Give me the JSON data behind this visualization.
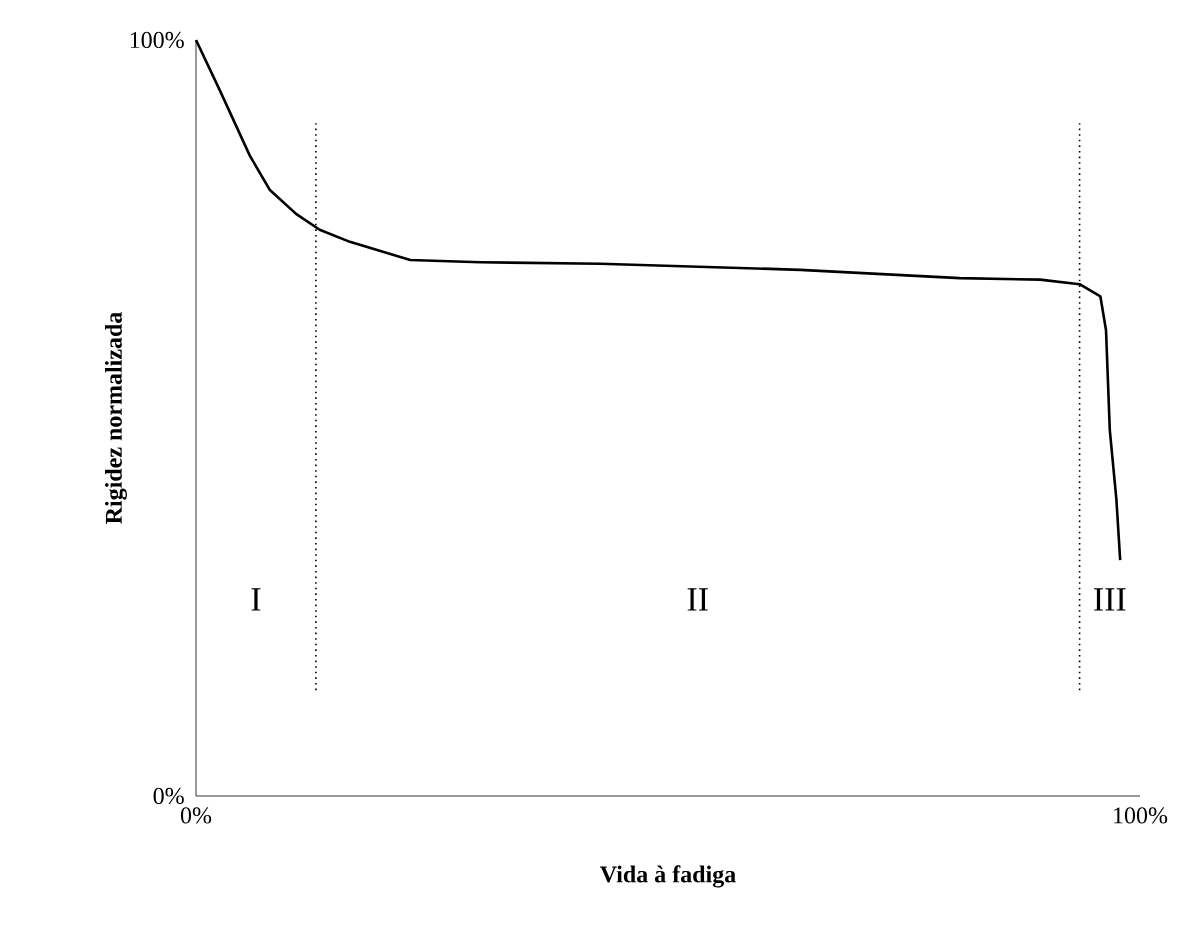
{
  "chart_data": {
    "type": "line",
    "xlabel": "Vida à fadiga",
    "ylabel": "Rigidez normalizada",
    "x": [
      0,
      2.5,
      5.7,
      7.8,
      10.6,
      13.1,
      16.3,
      22.7,
      30.1,
      42.8,
      64,
      80.9,
      89.4,
      93.6,
      95.8,
      96.4,
      96.8,
      97.5,
      97.9
    ],
    "series": [
      {
        "color": "#000000",
        "values": [
          100,
          93.4,
          84.7,
          80.2,
          77,
          74.9,
          73.3,
          70.9,
          70.6,
          70.4,
          69.6,
          68.5,
          68.3,
          67.7,
          66.1,
          61.6,
          48.4,
          39.2,
          31.2
        ]
      }
    ],
    "xlim": [
      0,
      100
    ],
    "ylim": [
      0,
      100
    ],
    "xticks": [
      {
        "value": 0,
        "label": "0%"
      },
      {
        "value": 100,
        "label": "100%"
      }
    ],
    "yticks": [
      {
        "value": 0,
        "label": "0%"
      },
      {
        "value": 100,
        "label": "100%"
      }
    ],
    "line_style": "solid",
    "ref_lines": [
      {
        "axis": "x",
        "value": 12.7,
        "line_style": "dotted"
      },
      {
        "axis": "x",
        "value": 93.6,
        "line_style": "dotted"
      }
    ],
    "annotations": [
      "I",
      "II",
      "III"
    ]
  }
}
